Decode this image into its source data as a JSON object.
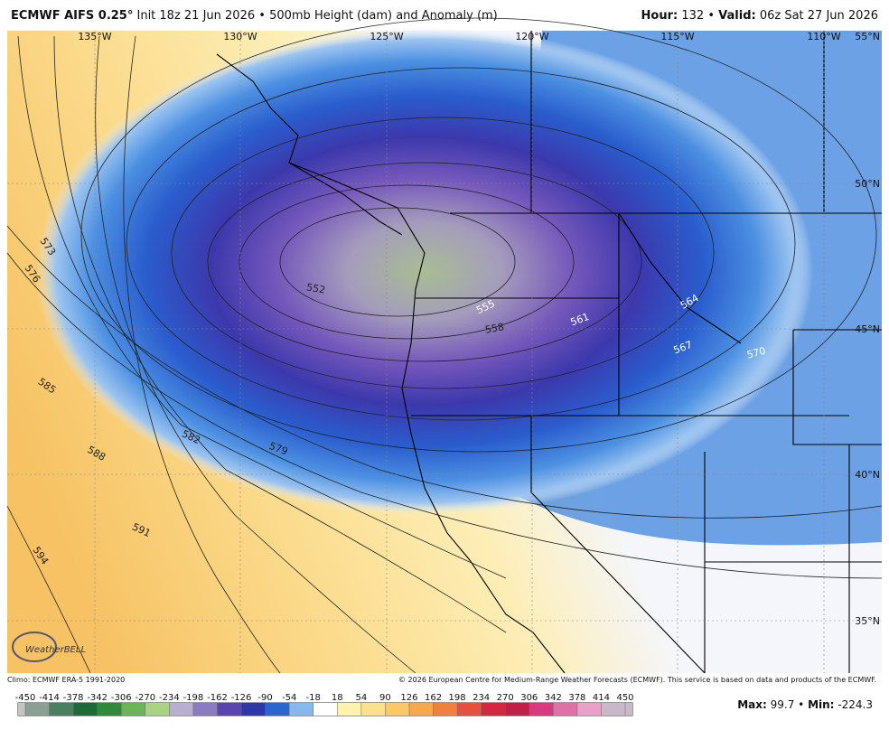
{
  "header": {
    "title": "ECMWF AIFS 0.25°",
    "init": "Init 18z 21 Jun 2026",
    "separator": "•",
    "field": "500mb Height (dam) and Anomaly (m)",
    "hour_label": "Hour:",
    "hour": 132,
    "valid_label": "Valid:",
    "valid": "06z Sat 27 Jun 2026"
  },
  "map": {
    "longitude_labels": [
      "135°W",
      "130°W",
      "125°W",
      "120°W",
      "115°W",
      "110°W"
    ],
    "latitude_labels": [
      "55°N",
      "50°N",
      "45°N",
      "40°N",
      "35°N"
    ],
    "contour_labels": [
      573,
      576,
      585,
      588,
      582,
      579,
      591,
      594,
      552,
      555,
      558,
      561,
      564,
      567,
      570
    ]
  },
  "logo": "WeatherBELL",
  "footer": {
    "climo": "Climo: ECMWF ERA-5 1991-2020",
    "copyright": "© 2026 European Centre for Medium-Range Weather Forecasts (ECMWF). This service is based on data and products of the ECMWF."
  },
  "colorbar": {
    "ticks": [
      -450,
      -414,
      -378,
      -342,
      -306,
      -270,
      -234,
      -198,
      -162,
      -126,
      -90,
      -54,
      -18,
      18,
      54,
      90,
      126,
      162,
      198,
      234,
      270,
      306,
      342,
      378,
      414,
      450
    ],
    "colors": [
      "#c4c4c4",
      "#8aa096",
      "#4c7e62",
      "#1d6b36",
      "#2f8a3c",
      "#6cb35a",
      "#a8d384",
      "#b7aed0",
      "#8a7cc0",
      "#5a44b0",
      "#2e36a8",
      "#2a66d0",
      "#86b8ee",
      "#ffffff",
      "#fff3b0",
      "#fde08a",
      "#fbc868",
      "#f7a84a",
      "#f0803c",
      "#e55040",
      "#d42840",
      "#c02048",
      "#d83a80",
      "#e070a8",
      "#e8a0c8",
      "#c8b8c8"
    ]
  },
  "stats": {
    "max_label": "Max:",
    "max": 99.7,
    "separator": "•",
    "min_label": "Min:",
    "min": -224.3
  }
}
